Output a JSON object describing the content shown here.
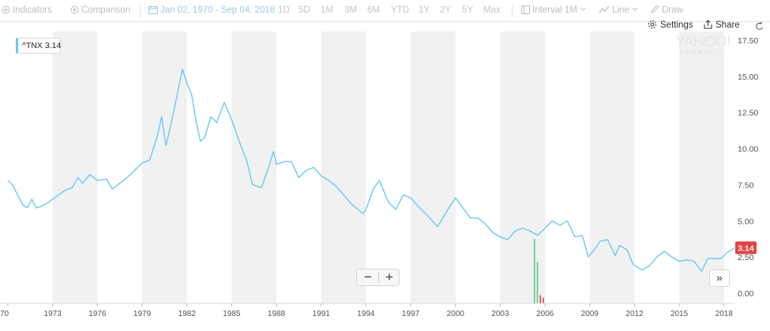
{
  "toolbar": {
    "indicators": "Indicators",
    "comparison": "Comparison",
    "date_range": "Jan 02, 1970 - Sep 04, 2018",
    "ranges": [
      "1D",
      "5D",
      "1M",
      "3M",
      "6M",
      "YTD",
      "1Y",
      "2Y",
      "5Y",
      "Max"
    ],
    "interval_label": "Interval",
    "interval_value": "1M",
    "chart_type": "Line",
    "draw": "Draw",
    "settings": "Settings",
    "share": "Share"
  },
  "legend": {
    "symbol": "^TNX",
    "value": "3.14"
  },
  "watermark": {
    "line1": "YAHOO!",
    "line2": "FINANCE"
  },
  "zoom": {
    "minus": "−",
    "plus": "+"
  },
  "scroll_label": "»",
  "colors": {
    "line": "#69c9f5",
    "band": "#f1f1f1",
    "price_tag": "#e8403f",
    "vol_up": "#5cc987",
    "vol_down": "#e8403f"
  },
  "chart_data": {
    "type": "line",
    "title": "",
    "xlabel": "",
    "ylabel": "",
    "x_ticks": [
      "70",
      "1973",
      "1976",
      "1979",
      "1982",
      "1985",
      "1988",
      "1991",
      "1994",
      "1997",
      "2000",
      "2003",
      "2006",
      "2009",
      "2012",
      "2015",
      "2018"
    ],
    "y_ticks": [
      "17.50",
      "15.00",
      "12.50",
      "10.00",
      "7.50",
      "5.00",
      "2.50",
      "0.00"
    ],
    "ylim": [
      0,
      17.5
    ],
    "xlim": [
      1970.0,
      2018.7
    ],
    "grid": "alternating year bands",
    "last_value_label": "3.14",
    "series": [
      {
        "name": "^TNX",
        "x": [
          1970.0,
          1970.3,
          1970.6,
          1971.0,
          1971.3,
          1971.6,
          1971.9,
          1972.2,
          1972.6,
          1973.0,
          1973.4,
          1973.8,
          1974.3,
          1974.7,
          1975.0,
          1975.5,
          1976.0,
          1976.6,
          1977.0,
          1977.5,
          1978.0,
          1978.5,
          1979.0,
          1979.5,
          1980.0,
          1980.3,
          1980.6,
          1981.0,
          1981.3,
          1981.7,
          1982.0,
          1982.3,
          1982.6,
          1982.9,
          1983.2,
          1983.6,
          1984.0,
          1984.5,
          1985.0,
          1985.5,
          1986.0,
          1986.4,
          1987.0,
          1987.5,
          1987.8,
          1988.0,
          1988.5,
          1989.0,
          1989.5,
          1990.0,
          1990.5,
          1991.0,
          1991.5,
          1992.0,
          1992.5,
          1993.0,
          1993.8,
          1994.0,
          1994.5,
          1994.9,
          1995.5,
          1996.0,
          1996.5,
          1997.0,
          1997.5,
          1998.0,
          1998.8,
          1999.5,
          2000.0,
          2000.5,
          2001.0,
          2001.5,
          2002.0,
          2002.5,
          2003.0,
          2003.5,
          2004.0,
          2004.5,
          2005.0,
          2005.5,
          2006.0,
          2006.5,
          2007.0,
          2007.5,
          2008.0,
          2008.5,
          2008.9,
          2009.3,
          2009.7,
          2010.2,
          2010.7,
          2011.0,
          2011.5,
          2011.9,
          2012.5,
          2013.0,
          2013.5,
          2014.0,
          2014.5,
          2015.0,
          2015.5,
          2016.0,
          2016.5,
          2016.9,
          2017.3,
          2017.8,
          2018.2,
          2018.7
        ],
        "values": [
          7.8,
          7.5,
          6.9,
          6.1,
          5.9,
          6.5,
          5.9,
          6.0,
          6.2,
          6.5,
          6.8,
          7.1,
          7.3,
          8.0,
          7.6,
          8.2,
          7.8,
          7.9,
          7.2,
          7.6,
          8.0,
          8.5,
          9.0,
          9.2,
          10.8,
          12.2,
          10.2,
          12.0,
          13.5,
          15.5,
          14.5,
          13.8,
          12.0,
          10.5,
          10.8,
          12.2,
          11.8,
          13.2,
          12.0,
          10.5,
          9.2,
          7.5,
          7.3,
          8.8,
          9.8,
          8.9,
          9.1,
          9.1,
          8.0,
          8.5,
          8.7,
          8.1,
          7.8,
          7.4,
          6.8,
          6.2,
          5.5,
          5.8,
          7.2,
          7.8,
          6.3,
          5.8,
          6.8,
          6.6,
          6.0,
          5.5,
          4.6,
          5.8,
          6.6,
          5.9,
          5.2,
          5.2,
          4.8,
          4.2,
          3.9,
          3.7,
          4.3,
          4.5,
          4.3,
          4.0,
          4.5,
          5.0,
          4.7,
          5.0,
          3.9,
          4.0,
          2.5,
          3.0,
          3.6,
          3.7,
          2.6,
          3.3,
          3.0,
          2.0,
          1.6,
          1.9,
          2.5,
          2.9,
          2.5,
          2.2,
          2.3,
          2.2,
          1.5,
          2.4,
          2.4,
          2.4,
          2.8,
          3.14
        ]
      }
    ]
  }
}
